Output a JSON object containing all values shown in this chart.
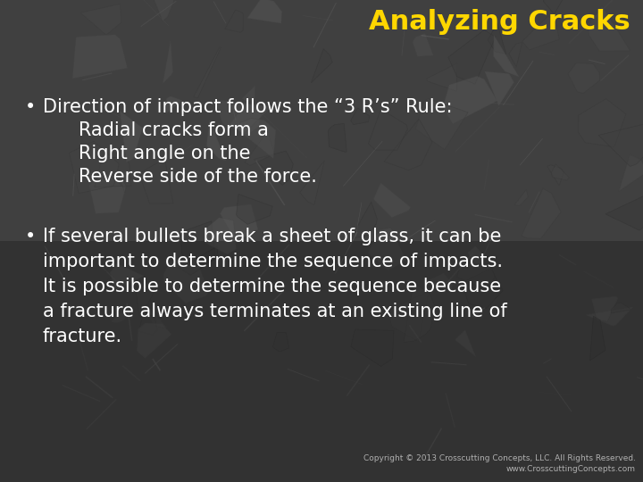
{
  "title": "Analyzing Cracks",
  "title_color": "#FFD700",
  "title_fontsize": 22,
  "bg_color": "#404040",
  "text_color": "#ffffff",
  "bullet1_line1": "Direction of impact follows the “3 R’s” Rule:",
  "bullet1_line2": "Radial cracks form a",
  "bullet1_line3": "Right angle on the",
  "bullet1_line4": "Reverse side of the force.",
  "bullet2_text": "If several bullets break a sheet of glass, it can be\nimportant to determine the sequence of impacts.\nIt is possible to determine the sequence because\na fracture always terminates at an existing line of\nfracture.",
  "main_fontsize": 15,
  "copyright_line1": "Copyright © 2013 Crosscutting Concepts, LLC. All Rights Reserved.",
  "copyright_line2": "www.CrosscuttingConcepts.com",
  "copyright_fontsize": 6.5,
  "bullet_marker": "•",
  "watermark_color": "#5a5a5a",
  "bg_dark": "#2e2e2e",
  "bg_mid": "#454545"
}
